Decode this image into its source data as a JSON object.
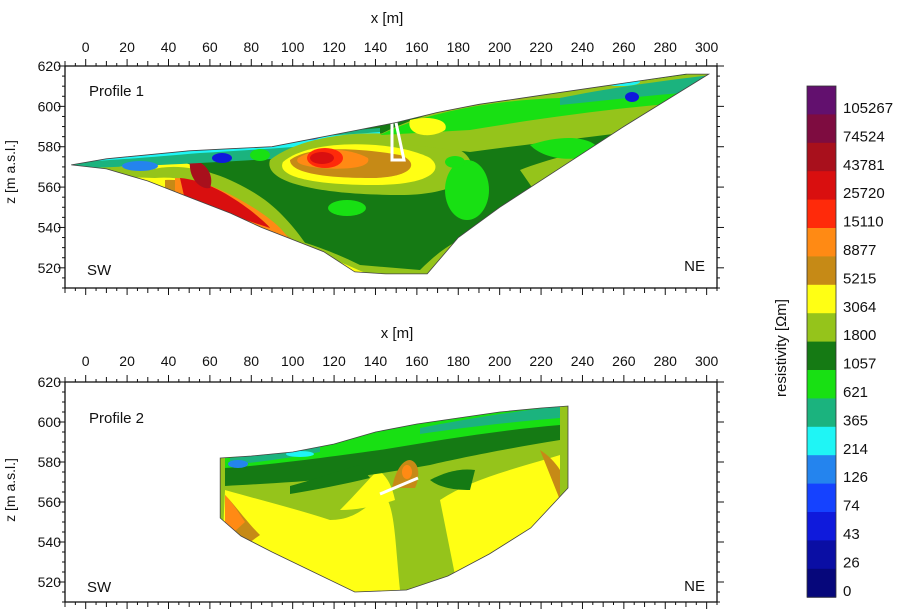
{
  "chart_data": [
    {
      "type": "heatmap",
      "title": "Profile 1",
      "xlabel": "x [m]",
      "ylabel": "z [m a.s.l.]",
      "xlim": [
        -10,
        305
      ],
      "ylim": [
        510,
        620
      ],
      "x_ticks": [
        "0",
        "20",
        "40",
        "60",
        "80",
        "100",
        "120",
        "140",
        "160",
        "180",
        "200",
        "220",
        "240",
        "260",
        "280",
        "300"
      ],
      "y_ticks": [
        "520",
        "540",
        "560",
        "580",
        "600",
        "620"
      ],
      "x_tick_values": [
        0,
        20,
        40,
        60,
        80,
        100,
        120,
        140,
        160,
        180,
        200,
        220,
        240,
        260,
        280,
        300
      ],
      "y_tick_values": [
        520,
        540,
        560,
        580,
        600,
        620
      ],
      "left_label": "SW",
      "right_label": "NE",
      "surface": [
        [
          -7,
          571
        ],
        [
          10,
          574
        ],
        [
          30,
          576
        ],
        [
          50,
          578
        ],
        [
          70,
          579
        ],
        [
          90,
          580
        ],
        [
          110,
          584
        ],
        [
          130,
          588
        ],
        [
          150,
          592
        ],
        [
          170,
          597
        ],
        [
          190,
          601
        ],
        [
          210,
          604
        ],
        [
          230,
          607
        ],
        [
          250,
          610
        ],
        [
          270,
          613
        ],
        [
          290,
          616
        ],
        [
          301,
          616
        ]
      ],
      "base": [
        [
          301,
          616
        ],
        [
          260,
          590
        ],
        [
          230,
          570
        ],
        [
          200,
          550
        ],
        [
          180,
          535
        ],
        [
          165,
          517
        ],
        [
          145,
          517
        ],
        [
          130,
          518
        ],
        [
          115,
          528
        ],
        [
          100,
          534
        ],
        [
          85,
          540
        ],
        [
          70,
          547
        ],
        [
          50,
          555
        ],
        [
          30,
          563
        ],
        [
          10,
          569
        ],
        [
          -7,
          571
        ]
      ]
    },
    {
      "type": "heatmap",
      "title": "Profile 2",
      "xlabel": "x [m]",
      "ylabel": "z [m a.s.l.]",
      "xlim": [
        -10,
        305
      ],
      "ylim": [
        510,
        620
      ],
      "x_ticks": [
        "0",
        "20",
        "40",
        "60",
        "80",
        "100",
        "120",
        "140",
        "160",
        "180",
        "200",
        "220",
        "240",
        "260",
        "280",
        "300"
      ],
      "y_ticks": [
        "520",
        "540",
        "560",
        "580",
        "600",
        "620"
      ],
      "x_tick_values": [
        0,
        20,
        40,
        60,
        80,
        100,
        120,
        140,
        160,
        180,
        200,
        220,
        240,
        260,
        280,
        300
      ],
      "y_tick_values": [
        520,
        540,
        560,
        580,
        600,
        620
      ],
      "left_label": "SW",
      "right_label": "NE",
      "surface": [
        [
          65,
          582
        ],
        [
          80,
          583
        ],
        [
          100,
          585
        ],
        [
          120,
          589
        ],
        [
          140,
          595
        ],
        [
          160,
          599
        ],
        [
          180,
          602
        ],
        [
          200,
          605
        ],
        [
          220,
          607
        ],
        [
          233,
          608
        ]
      ],
      "base": [
        [
          233,
          608
        ],
        [
          233,
          567
        ],
        [
          215,
          547
        ],
        [
          195,
          534
        ],
        [
          175,
          523
        ],
        [
          155,
          516
        ],
        [
          130,
          515
        ],
        [
          110,
          525
        ],
        [
          90,
          535
        ],
        [
          75,
          543
        ],
        [
          65,
          552
        ],
        [
          65,
          582
        ]
      ]
    }
  ],
  "colorbar": {
    "label": "resistivity [Ωm]",
    "levels": [
      "105267",
      "74524",
      "43781",
      "25720",
      "15110",
      "8877",
      "5215",
      "3064",
      "1800",
      "1057",
      "621",
      "365",
      "214",
      "126",
      "74",
      "43",
      "26",
      "0"
    ],
    "colors": [
      "#62106e",
      "#7e0c40",
      "#a8101c",
      "#d90f0f",
      "#ff2a0a",
      "#ff8a14",
      "#c68a16",
      "#ffff14",
      "#95c41b",
      "#157a14",
      "#18e013",
      "#1bb37e",
      "#1ff5f5",
      "#2484ee",
      "#1542ff",
      "#0f1adc",
      "#0a0ea4",
      "#06077b"
    ]
  }
}
